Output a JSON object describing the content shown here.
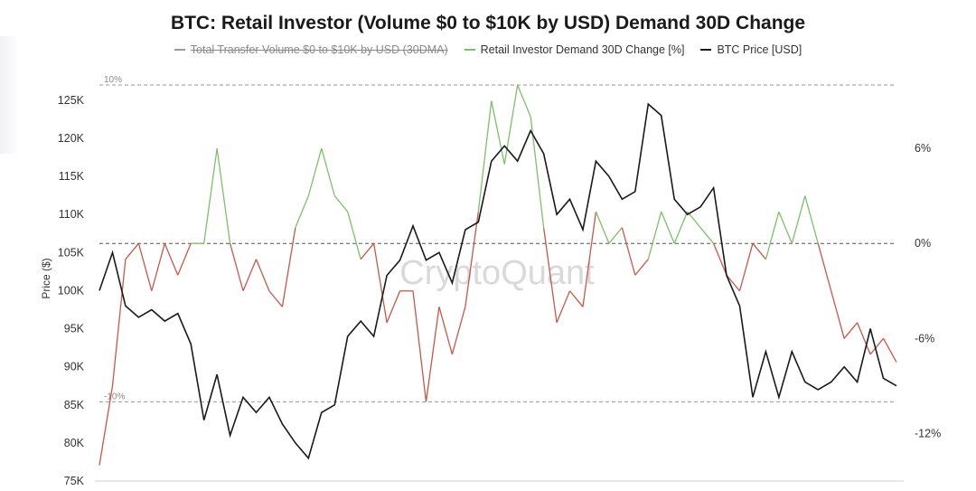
{
  "colors": {
    "price": "#1a1a1a",
    "demand_positive": "#7dbf6a",
    "demand_negative": "#c8574b",
    "reference_line": "#9a9a9a",
    "hidden_series": "#9a9a9a",
    "axis_text": "#333333",
    "watermark": "#d9d9d9"
  },
  "watermark": "CryptoQuant",
  "chart_data": {
    "type": "line",
    "title": "BTC: Retail Investor (Volume $0 to $10K by USD) Demand 30D Change",
    "ylabel": "Price ($)",
    "ylim": [
      75000,
      127000
    ],
    "y2lim": [
      -15,
      10
    ],
    "left_ticks": [
      "125K",
      "120K",
      "115K",
      "110K",
      "105K",
      "100K",
      "95K",
      "90K",
      "85K",
      "80K",
      "75K"
    ],
    "right_ticks": [
      "6%",
      "0%",
      "-6%",
      "-12%"
    ],
    "right_tick_values": [
      6,
      0,
      -6,
      -12
    ],
    "reference_lines": [
      {
        "value": 10,
        "label": "10%"
      },
      {
        "value": 0,
        "label": ""
      },
      {
        "value": -10,
        "label": "-10%"
      }
    ],
    "legend": [
      {
        "label": "Total Transfer Volume $0 to $10K by USD (30DMA)",
        "hidden": true
      },
      {
        "label": "Retail Investor Demand 30D Change [%]",
        "hidden": false
      },
      {
        "label": "BTC Price [USD]",
        "hidden": false
      }
    ],
    "series": [
      {
        "name": "BTC Price [USD]",
        "axis": "left",
        "values": [
          100000,
          105000,
          98000,
          96500,
          97500,
          96000,
          97000,
          93000,
          83000,
          89000,
          81000,
          86000,
          84000,
          86000,
          82500,
          80000,
          78000,
          84000,
          85000,
          94000,
          96000,
          94000,
          102000,
          104000,
          108500,
          104000,
          105000,
          101000,
          108000,
          109000,
          117000,
          119000,
          117000,
          121000,
          118000,
          110000,
          112000,
          108000,
          117000,
          115000,
          112000,
          113000,
          124500,
          123000,
          112000,
          110000,
          111000,
          113500,
          102000,
          98000,
          86000,
          92000,
          86000,
          92000,
          88000,
          87000,
          88000,
          90000,
          88000,
          95000,
          88500,
          87500
        ]
      },
      {
        "name": "Retail Investor Demand 30D Change [%]",
        "axis": "right",
        "values": [
          -14,
          -9,
          -1,
          0,
          -3,
          0,
          -2,
          0,
          0,
          6,
          0,
          -3,
          -1,
          -3,
          -4,
          1,
          3,
          6,
          3,
          2,
          -1,
          0,
          -5,
          -3,
          -3,
          -10,
          -4,
          -7,
          -4,
          2,
          9,
          5,
          10,
          8,
          1,
          -5,
          -3,
          -4,
          2,
          0,
          1,
          -2,
          -1,
          2,
          0,
          2,
          1,
          0,
          -2,
          -3,
          0,
          -1,
          2,
          0,
          3,
          0,
          -3,
          -6,
          -5,
          -7,
          -6,
          -7.5
        ]
      }
    ]
  }
}
